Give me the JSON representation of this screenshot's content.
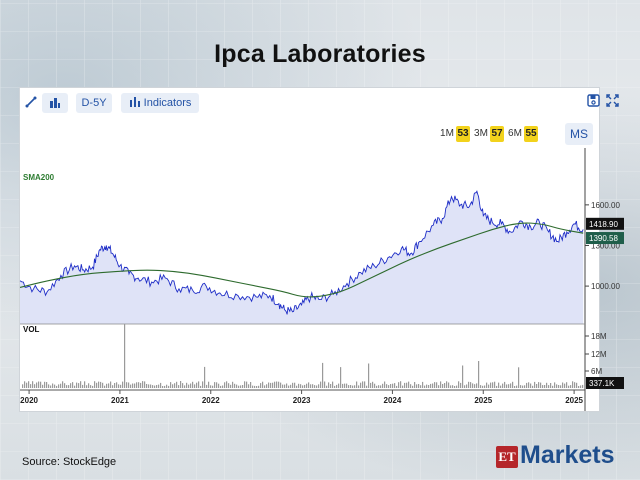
{
  "title": "Ipca Laboratories",
  "source": "Source:  StockEdge",
  "logo": {
    "et": "ET",
    "markets": "Markets"
  },
  "toolbar": {
    "draw_icon": "pencil-line-icon",
    "chart_type_icon": "bar-chart-icon",
    "range_label": "D-5Y",
    "indicators_label": "Indicators",
    "save_icon": "save-icon",
    "fullscreen_icon": "expand-icon"
  },
  "ranges": {
    "m1": "1M",
    "m1_badge": "53",
    "m3": "3M",
    "m3_badge": "57",
    "m6": "6M",
    "m6_badge": "55",
    "ms": "MS"
  },
  "indicator_label": "SMA200",
  "volume_label": "VOL",
  "colors": {
    "price": "#1f2ec7",
    "price_fill": "#dfe3f7",
    "sma": "#2e6b2e",
    "price_tag": "#111111",
    "sma_tag": "#1f5e4a"
  },
  "chart_data": {
    "type": "line",
    "x_tick_labels": [
      "2020",
      "2021",
      "2022",
      "2023",
      "2024",
      "2025",
      "2025"
    ],
    "y_tick_labels": [
      "1600.00",
      "1300.00",
      "1000.00"
    ],
    "y_ticks": [
      1600,
      1300,
      1000
    ],
    "ylim": [
      720,
      2020
    ],
    "price_last": "1418.90",
    "sma_last": "1390.58",
    "volume_ticks": [
      "18M",
      "12M",
      "6M"
    ],
    "volume_last": "337.1K",
    "price_series": [
      [
        2019.9,
        1040
      ],
      [
        2020.05,
        980
      ],
      [
        2020.2,
        960
      ],
      [
        2020.35,
        1080
      ],
      [
        2020.5,
        1150
      ],
      [
        2020.6,
        1120
      ],
      [
        2020.7,
        1140
      ],
      [
        2020.78,
        1270
      ],
      [
        2020.85,
        1300
      ],
      [
        2020.92,
        1240
      ],
      [
        2021.0,
        1150
      ],
      [
        2021.1,
        1090
      ],
      [
        2021.2,
        1060
      ],
      [
        2021.35,
        1030
      ],
      [
        2021.5,
        1060
      ],
      [
        2021.65,
        980
      ],
      [
        2021.8,
        970
      ],
      [
        2021.95,
        1000
      ],
      [
        2022.1,
        950
      ],
      [
        2022.3,
        930
      ],
      [
        2022.5,
        920
      ],
      [
        2022.65,
        930
      ],
      [
        2022.75,
        870
      ],
      [
        2022.82,
        820
      ],
      [
        2022.9,
        810
      ],
      [
        2023.0,
        860
      ],
      [
        2023.1,
        920
      ],
      [
        2023.2,
        900
      ],
      [
        2023.35,
        940
      ],
      [
        2023.5,
        1020
      ],
      [
        2023.65,
        1100
      ],
      [
        2023.8,
        1150
      ],
      [
        2023.95,
        1210
      ],
      [
        2024.1,
        1280
      ],
      [
        2024.2,
        1240
      ],
      [
        2024.3,
        1330
      ],
      [
        2024.45,
        1450
      ],
      [
        2024.55,
        1500
      ],
      [
        2024.65,
        1660
      ],
      [
        2024.75,
        1600
      ],
      [
        2024.85,
        1590
      ],
      [
        2024.93,
        1700
      ],
      [
        2025.0,
        1520
      ],
      [
        2025.1,
        1470
      ],
      [
        2025.2,
        1460
      ],
      [
        2025.3,
        1400
      ],
      [
        2025.42,
        1480
      ],
      [
        2025.52,
        1440
      ],
      [
        2025.62,
        1470
      ],
      [
        2025.72,
        1400
      ],
      [
        2025.82,
        1330
      ],
      [
        2025.92,
        1400
      ],
      [
        2026.0,
        1460
      ],
      [
        2026.1,
        1419
      ]
    ],
    "sma_series": [
      [
        2019.9,
        990
      ],
      [
        2020.2,
        1040
      ],
      [
        2020.6,
        1090
      ],
      [
        2021.0,
        1110
      ],
      [
        2021.3,
        1120
      ],
      [
        2021.6,
        1110
      ],
      [
        2021.9,
        1080
      ],
      [
        2022.2,
        1040
      ],
      [
        2022.5,
        1000
      ],
      [
        2022.8,
        960
      ],
      [
        2023.0,
        920
      ],
      [
        2023.2,
        920
      ],
      [
        2023.45,
        960
      ],
      [
        2023.7,
        1040
      ],
      [
        2023.95,
        1120
      ],
      [
        2024.2,
        1200
      ],
      [
        2024.5,
        1280
      ],
      [
        2024.8,
        1350
      ],
      [
        2025.1,
        1420
      ],
      [
        2025.4,
        1470
      ],
      [
        2025.65,
        1460
      ],
      [
        2025.85,
        1420
      ],
      [
        2026.1,
        1391
      ]
    ]
  }
}
